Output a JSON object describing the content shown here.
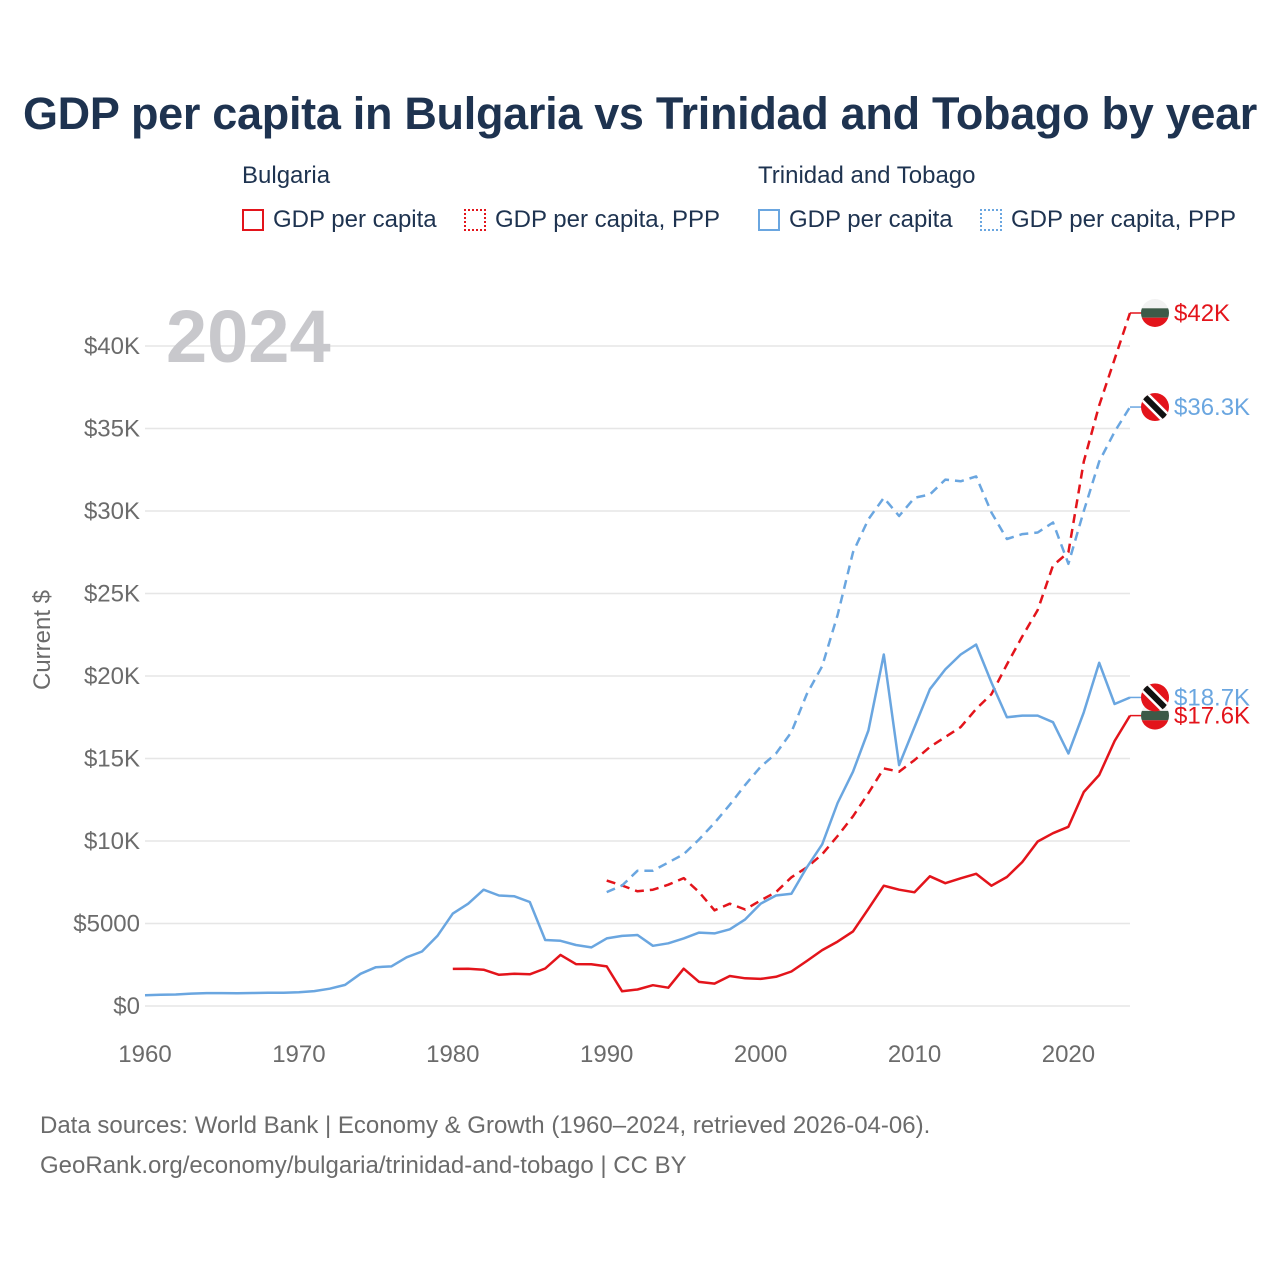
{
  "title": "GDP per capita in Bulgaria vs Trinidad and Tobago by year",
  "legend": {
    "groups": [
      {
        "country": "Bulgaria",
        "items": [
          {
            "label": "GDP per capita"
          },
          {
            "label": "GDP per capita, PPP"
          }
        ]
      },
      {
        "country": "Trinidad and Tobago",
        "items": [
          {
            "label": "GDP per capita"
          },
          {
            "label": "GDP per capita, PPP"
          }
        ]
      }
    ]
  },
  "footer": {
    "line1": "Data sources: World Bank | Economy & Growth (1960–2024, retrieved 2026-04-06).",
    "line2": "GeoRank.org/economy/bulgaria/trinidad-and-tobago | CC BY"
  },
  "chart_data": {
    "type": "line",
    "year_label": "2024",
    "ylabel": "Current $",
    "xlim": [
      1960,
      2024
    ],
    "ylim": [
      0,
      42000
    ],
    "x_ticks": [
      1960,
      1970,
      1980,
      1990,
      2000,
      2010,
      2020
    ],
    "y_ticks": [
      {
        "value": 0,
        "label": "$0"
      },
      {
        "value": 5000,
        "label": "$5000"
      },
      {
        "value": 10000,
        "label": "$10K"
      },
      {
        "value": 15000,
        "label": "$15K"
      },
      {
        "value": 20000,
        "label": "$20K"
      },
      {
        "value": 25000,
        "label": "$25K"
      },
      {
        "value": 30000,
        "label": "$30K"
      },
      {
        "value": 35000,
        "label": "$35K"
      },
      {
        "value": 40000,
        "label": "$40K"
      }
    ],
    "colors": {
      "bulgaria": "#e3141b",
      "trinidad": "#6aa6e0",
      "grid": "#e6e6e6",
      "tick_text": "#6b6b6b",
      "year": "#c8c8cc"
    },
    "series": [
      {
        "name": "Bulgaria GDP per capita",
        "country": "bulgaria",
        "dashed": false,
        "end_label": "$17.6K",
        "start_year": 1980,
        "values": [
          2250,
          2260,
          2200,
          1890,
          1960,
          1920,
          2270,
          3100,
          2540,
          2530,
          2400,
          890,
          1000,
          1260,
          1110,
          2260,
          1460,
          1360,
          1820,
          1680,
          1640,
          1770,
          2090,
          2730,
          3390,
          3900,
          4520,
          5890,
          7290,
          7050,
          6890,
          7860,
          7440,
          7740,
          8010,
          7290,
          7820,
          8730,
          9970,
          10470,
          10860,
          12970,
          14000,
          16060,
          17600
        ]
      },
      {
        "name": "Bulgaria GDP per capita, PPP",
        "country": "bulgaria",
        "dashed": true,
        "end_label": "$42K",
        "start_year": 1990,
        "values": [
          7600,
          7300,
          6950,
          7050,
          7350,
          7750,
          6900,
          5800,
          6200,
          5850,
          6400,
          6900,
          7800,
          8400,
          9200,
          10300,
          11500,
          12900,
          14400,
          14200,
          14900,
          15700,
          16300,
          16900,
          18000,
          18900,
          20700,
          22400,
          24000,
          26700,
          27500,
          33000,
          36400,
          39200,
          42000
        ]
      },
      {
        "name": "Trinidad and Tobago GDP per capita",
        "country": "trinidad",
        "dashed": false,
        "end_label": "$18.7K",
        "start_year": 1960,
        "values": [
          650,
          680,
          700,
          750,
          780,
          780,
          770,
          790,
          800,
          800,
          830,
          900,
          1050,
          1280,
          1950,
          2350,
          2400,
          2950,
          3300,
          4250,
          5600,
          6200,
          7050,
          6700,
          6650,
          6300,
          4000,
          3950,
          3700,
          3550,
          4100,
          4250,
          4300,
          3650,
          3800,
          4100,
          4450,
          4400,
          4650,
          5250,
          6200,
          6700,
          6800,
          8400,
          9800,
          12300,
          14200,
          16700,
          21300,
          14600,
          16900,
          19200,
          20400,
          21300,
          21900,
          19600,
          17500,
          17600,
          17600,
          17200,
          15300,
          17800,
          20800,
          18300,
          18700
        ]
      },
      {
        "name": "Trinidad and Tobago GDP per capita, PPP",
        "country": "trinidad",
        "dashed": true,
        "end_label": "$36.3K",
        "start_year": 1990,
        "values": [
          6900,
          7300,
          8200,
          8200,
          8700,
          9200,
          10100,
          11100,
          12200,
          13400,
          14500,
          15300,
          16600,
          18900,
          20600,
          23700,
          27500,
          29500,
          30800,
          29700,
          30800,
          31000,
          31900,
          31800,
          32100,
          29900,
          28300,
          28600,
          28700,
          29300,
          26800,
          30000,
          33000,
          34800,
          36300
        ]
      }
    ]
  }
}
